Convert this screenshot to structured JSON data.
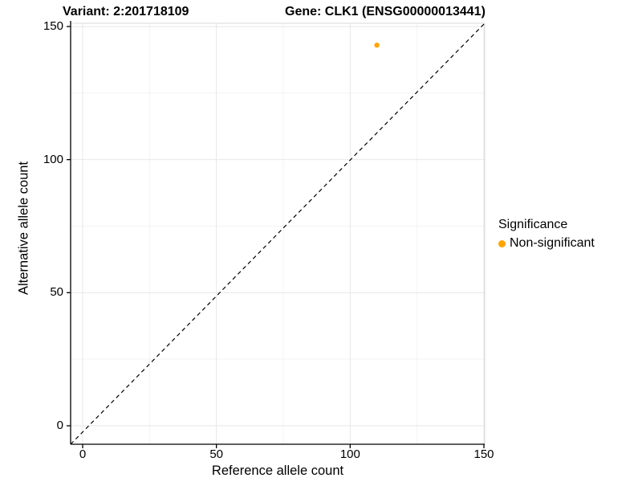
{
  "figure": {
    "title_left": "Variant: 2:201718109",
    "title_right": "Gene: CLK1 (ENSG00000013441)"
  },
  "chart_data": {
    "type": "scatter",
    "title": "Variant: 2:201718109   Gene: CLK1 (ENSG00000013441)",
    "xlabel": "Reference allele count",
    "ylabel": "Alternative allele count",
    "x_ticks": [
      0,
      50,
      100,
      150
    ],
    "y_ticks": [
      0,
      50,
      100,
      150
    ],
    "x_minor_ticks": [
      25,
      75,
      125
    ],
    "y_minor_ticks": [
      25,
      75,
      125
    ],
    "xlim": [
      -5,
      150
    ],
    "ylim": [
      -7,
      151
    ],
    "grid": true,
    "identity_line": {
      "equation": "y = x",
      "style": "dashed",
      "color": "#000000"
    },
    "points": [
      {
        "x": 110,
        "y": 143,
        "series": "Non-significant",
        "color": "#FFA500"
      }
    ],
    "legend": {
      "title": "Significance",
      "position": "right",
      "items": [
        {
          "label": "Non-significant",
          "color": "#FFA500"
        }
      ]
    },
    "colors": {
      "point": "#FFA500",
      "grid_major": "#E7E7E7",
      "grid_minor": "#F3F3F3",
      "panel_border": "#D9D9D9",
      "axis": "#000000",
      "text": "#000000",
      "background": "#FFFFFF"
    }
  }
}
